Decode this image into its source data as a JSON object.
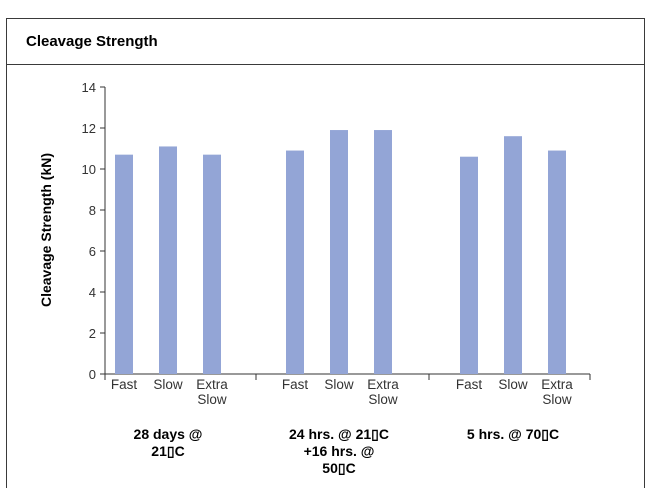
{
  "header": {
    "title": "Cleavage Strength"
  },
  "chart_data": {
    "type": "bar",
    "title": "",
    "xlabel": "",
    "ylabel": "Cleavage Strength (kN)",
    "ylim": [
      0,
      14
    ],
    "yticks": [
      0,
      2,
      4,
      6,
      8,
      10,
      12,
      14
    ],
    "grid": false,
    "bar_color": "#93a5d6",
    "groups": [
      {
        "label": [
          "28 days @",
          "21▯C"
        ],
        "bars": [
          {
            "label": [
              "Fast"
            ],
            "value": 10.7
          },
          {
            "label": [
              "Slow"
            ],
            "value": 11.1
          },
          {
            "label": [
              "Extra",
              "Slow"
            ],
            "value": 10.7
          }
        ]
      },
      {
        "label": [
          "24 hrs. @ 21▯C",
          "+16 hrs. @",
          "50▯C"
        ],
        "bars": [
          {
            "label": [
              "Fast"
            ],
            "value": 10.9
          },
          {
            "label": [
              "Slow"
            ],
            "value": 11.9
          },
          {
            "label": [
              "Extra",
              "Slow"
            ],
            "value": 11.9
          }
        ]
      },
      {
        "label": [
          "5 hrs. @ 70▯C"
        ],
        "bars": [
          {
            "label": [
              "Fast"
            ],
            "value": 10.6
          },
          {
            "label": [
              "Slow"
            ],
            "value": 11.6
          },
          {
            "label": [
              "Extra",
              "Slow"
            ],
            "value": 10.9
          }
        ]
      }
    ]
  }
}
